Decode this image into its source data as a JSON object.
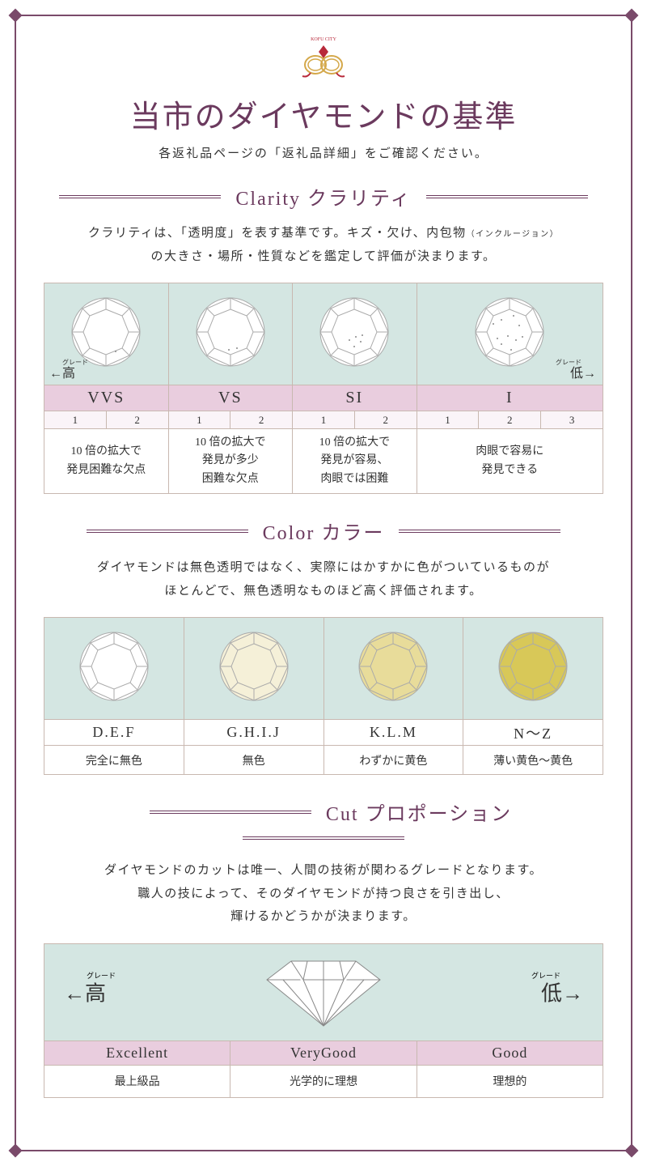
{
  "colors": {
    "accent": "#6b3a5e",
    "frame": "#7a4a6a",
    "cell_border": "#c8b8b0",
    "img_bg": "#d4e6e2",
    "pink_bg": "#e9cdde",
    "light_pink": "#faf4f8",
    "logo_red": "#b8293a",
    "logo_gold": "#d4a84a"
  },
  "logo_text": "KOFU CITY",
  "main_title": "当市のダイヤモンドの基準",
  "subtitle": "各返礼品ページの「返礼品詳細」をご確認ください。",
  "grade_high_ruby": "グレード",
  "grade_high": "←高",
  "grade_low_ruby": "グレード",
  "grade_low": "低→",
  "clarity": {
    "title": "Clarity クラリティ",
    "desc_l1": "クラリティは、「透明度」を表す基準です。キズ・欠け、内包物",
    "desc_small": "（インクルージョン）",
    "desc_l2": "の大きさ・場所・性質などを鑑定して評価が決まります。",
    "grades": [
      {
        "name": "VVS",
        "nums": [
          "1",
          "2"
        ],
        "desc": "10 倍の拡大で\n発見困難な欠点"
      },
      {
        "name": "VS",
        "nums": [
          "1",
          "2"
        ],
        "desc": "10 倍の拡大で\n発見が多少\n困難な欠点"
      },
      {
        "name": "SI",
        "nums": [
          "1",
          "2"
        ],
        "desc": "10 倍の拡大で\n発見が容易、\n肉眼では困難"
      },
      {
        "name": "I",
        "nums": [
          "1",
          "2",
          "3"
        ],
        "desc": "肉眼で容易に\n発見できる"
      }
    ]
  },
  "color": {
    "title": "Color カラー",
    "desc_l1": "ダイヤモンドは無色透明ではなく、実際にはかすかに色がついているものが",
    "desc_l2": "ほとんどで、無色透明なものほど高く評価されます。",
    "grades": [
      {
        "name": "D.E.F",
        "desc": "完全に無色",
        "fill": "#ffffff"
      },
      {
        "name": "G.H.I.J",
        "desc": "無色",
        "fill": "#f5f0d8"
      },
      {
        "name": "K.L.M",
        "desc": "わずかに黄色",
        "fill": "#e8dc9a"
      },
      {
        "name": "N～Z",
        "desc": "薄い黄色～黄色",
        "fill": "#d8c858"
      }
    ]
  },
  "cut": {
    "title": "Cut プロポーション",
    "desc_l1": "ダイヤモンドのカットは唯一、人間の技術が関わるグレードとなります。",
    "desc_l2": "職人の技によって、そのダイヤモンドが持つ良さを引き出し、",
    "desc_l3": "輝けるかどうかが決まります。",
    "grades": [
      {
        "name": "Excellent",
        "desc": "最上級品"
      },
      {
        "name": "VeryGood",
        "desc": "光学的に理想"
      },
      {
        "name": "Good",
        "desc": "理想的"
      }
    ]
  }
}
